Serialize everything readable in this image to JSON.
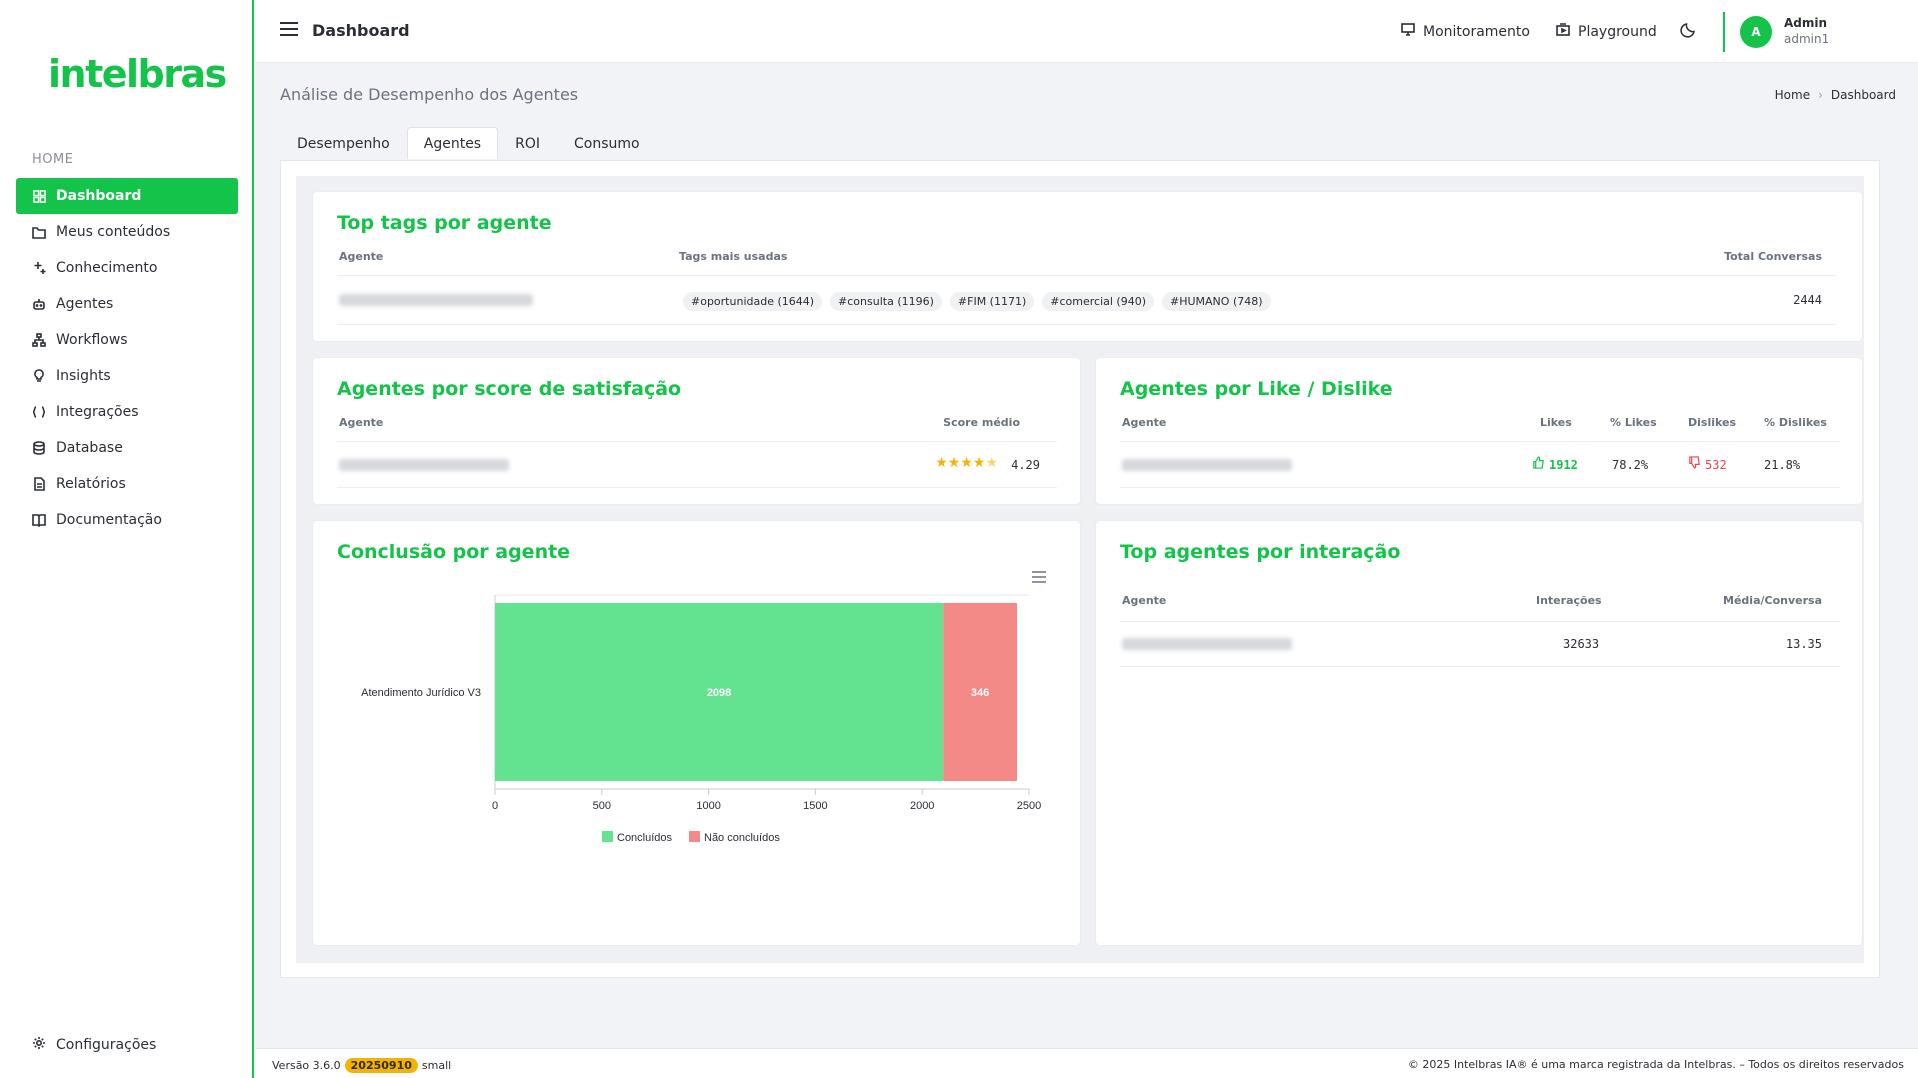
{
  "brand": {
    "logo": "intelbras"
  },
  "sidebar": {
    "section": "HOME",
    "items": [
      {
        "label": "Dashboard",
        "icon": "grid-icon",
        "active": true
      },
      {
        "label": "Meus conteúdos",
        "icon": "folder-icon"
      },
      {
        "label": "Conhecimento",
        "icon": "sparkle-icon"
      },
      {
        "label": "Agentes",
        "icon": "robot-icon"
      },
      {
        "label": "Workflows",
        "icon": "flow-icon"
      },
      {
        "label": "Insights",
        "icon": "lightbulb-icon"
      },
      {
        "label": "Integrações",
        "icon": "braces-icon"
      },
      {
        "label": "Database",
        "icon": "database-icon"
      },
      {
        "label": "Relatórios",
        "icon": "report-icon"
      },
      {
        "label": "Documentação",
        "icon": "book-icon"
      }
    ],
    "settings_label": "Configurações"
  },
  "topbar": {
    "title": "Dashboard",
    "monitor_label": "Monitoramento",
    "playground_label": "Playground",
    "user_initial": "A",
    "user_name": "Admin",
    "user_login": "admin1"
  },
  "page": {
    "title": "Análise de Desempenho dos Agentes",
    "breadcrumb": [
      "Home",
      "Dashboard"
    ],
    "tabs": [
      "Desempenho",
      "Agentes",
      "ROI",
      "Consumo"
    ],
    "active_tab": "Agentes"
  },
  "top_tags": {
    "title": "Top tags por agente",
    "headers": {
      "agent": "Agente",
      "tags": "Tags mais usadas",
      "total": "Total Conversas"
    },
    "tags": [
      "#oportunidade (1644)",
      "#consulta (1196)",
      "#FIM (1171)",
      "#comercial (940)",
      "#HUMANO (748)"
    ],
    "total": "2444"
  },
  "satisfaction": {
    "title": "Agentes por score de satisfação",
    "headers": {
      "agent": "Agente",
      "score": "Score médio"
    },
    "score": "4.29",
    "stars": 4.29
  },
  "likes": {
    "title": "Agentes por Like / Dislike",
    "headers": {
      "agent": "Agente",
      "likes": "Likes",
      "pct_likes": "% Likes",
      "dislikes": "Dislikes",
      "pct_dislikes": "% Dislikes"
    },
    "likes": "1912",
    "pct_likes": "78.2%",
    "dislikes": "532",
    "pct_dislikes": "21.8%"
  },
  "interaction": {
    "title": "Top agentes por interação",
    "headers": {
      "agent": "Agente",
      "interactions": "Interações",
      "avg": "Média/Conversa"
    },
    "interactions": "32633",
    "avg": "13.35"
  },
  "conclusion": {
    "title": "Conclusão por agente"
  },
  "chart_data": {
    "type": "bar",
    "orientation": "horizontal",
    "stacked": true,
    "categories": [
      "Atendimento Jurídico V3"
    ],
    "series": [
      {
        "name": "Concluídos",
        "values": [
          2098
        ],
        "color": "#63e28f"
      },
      {
        "name": "Não concluídos",
        "values": [
          346
        ],
        "color": "#f48a87"
      }
    ],
    "xlim": [
      0,
      2500
    ],
    "xticks": [
      "0",
      "500",
      "1000",
      "1500",
      "2000",
      "2500"
    ],
    "legend": "bottom"
  },
  "colors": {
    "accent": "#14c44a",
    "star": "#f5b300",
    "dislike": "#e5484d"
  },
  "footer": {
    "version": "Versão 3.6.0",
    "build": "20250910",
    "size": "small",
    "copyright": "© 2025 Intelbras IA® é uma marca registrada da Intelbras. – Todos os direitos reservados"
  }
}
